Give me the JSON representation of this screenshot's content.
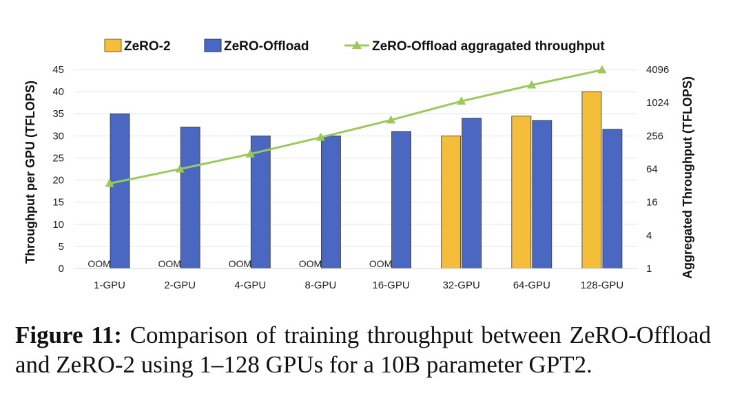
{
  "chart_data": {
    "type": "bar+line",
    "categories": [
      "1-GPU",
      "2-GPU",
      "4-GPU",
      "8-GPU",
      "16-GPU",
      "32-GPU",
      "64-GPU",
      "128-GPU"
    ],
    "series": [
      {
        "name": "ZeRO-2",
        "kind": "bar",
        "axis": "left",
        "color": "#F5BE3A",
        "values": [
          null,
          null,
          null,
          null,
          null,
          30,
          34.5,
          40
        ]
      },
      {
        "name": "ZeRO-Offload",
        "kind": "bar",
        "axis": "left",
        "color": "#4A67C2",
        "values": [
          35,
          32,
          30,
          30,
          31,
          34,
          33.5,
          31.5
        ]
      },
      {
        "name": "ZeRO-Offload aggragated throughput",
        "kind": "line",
        "axis": "right",
        "color": "#9BC95B",
        "values": [
          35,
          64,
          120,
          240,
          496,
          1088,
          2144,
          4032
        ]
      }
    ],
    "oom_label": "OOM",
    "oom_categories": [
      "1-GPU",
      "2-GPU",
      "4-GPU",
      "8-GPU",
      "16-GPU"
    ],
    "ylabel": "Throughput per GPU (TFLOPS)",
    "ylim": [
      0,
      45
    ],
    "yticks": [
      0,
      5,
      10,
      15,
      20,
      25,
      30,
      35,
      40,
      45
    ],
    "y2label": "Aggregated Throughput (TFLOPS)",
    "y2scale": "log4",
    "y2lim": [
      1,
      4096
    ],
    "y2ticks": [
      1,
      4,
      16,
      64,
      256,
      1024,
      4096
    ],
    "legend_position": "top"
  },
  "caption": {
    "label": "Figure 11:",
    "text": "Comparison of training throughput between ZeRO-Offload and ZeRO-2 using 1–128 GPUs for a 10B parameter GPT2."
  }
}
